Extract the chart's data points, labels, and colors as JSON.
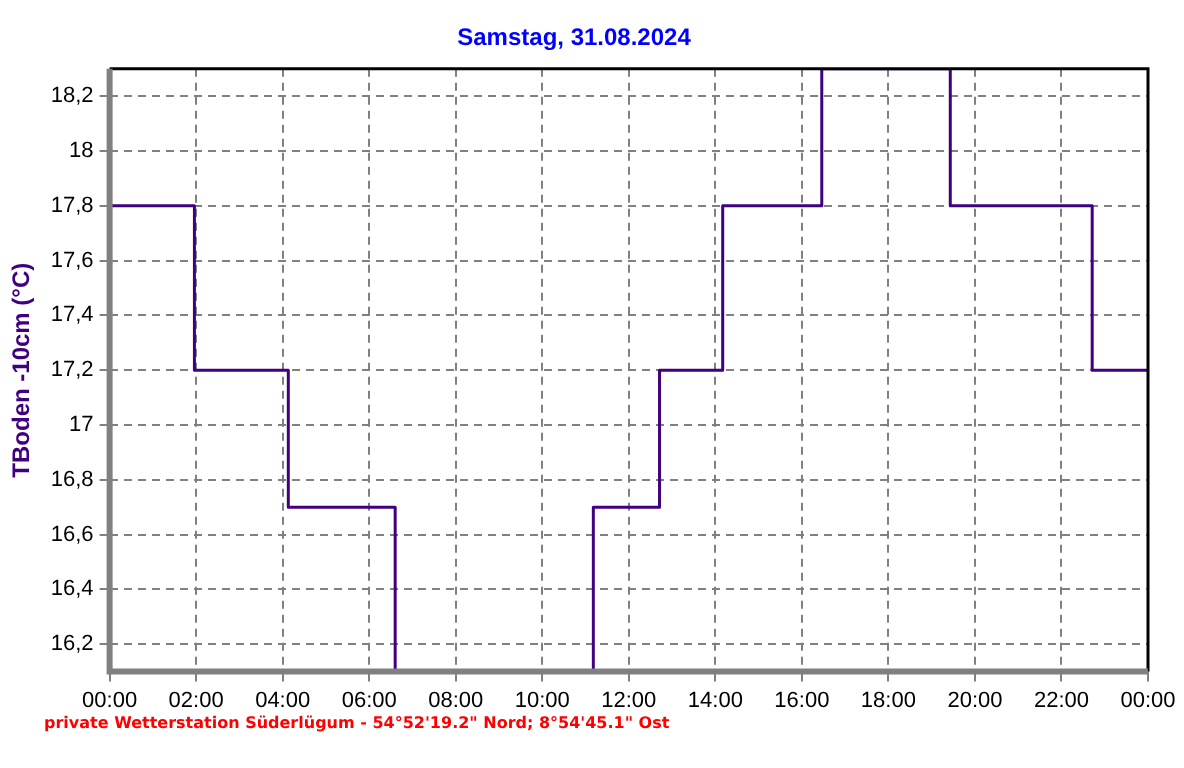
{
  "chart_data": {
    "type": "step",
    "title": "Samstag, 31.08.2024",
    "ylabel": "TBoden -10cm (°C)",
    "x": [
      0,
      1.96,
      4.13,
      6.6,
      11.18,
      12.71,
      14.17,
      16.46,
      19.43,
      22.71,
      24
    ],
    "series": [
      {
        "color": "#400080",
        "values": [
          17.8,
          17.2,
          16.7,
          16.1,
          16.7,
          17.2,
          17.8,
          18.3,
          17.8,
          17.2,
          17.2
        ]
      }
    ],
    "xlim": [
      0,
      24
    ],
    "xticks": [
      {
        "value": 0,
        "label": "00:00"
      },
      {
        "value": 2,
        "label": "02:00"
      },
      {
        "value": 4,
        "label": "04:00"
      },
      {
        "value": 6,
        "label": "06:00"
      },
      {
        "value": 8,
        "label": "08:00"
      },
      {
        "value": 10,
        "label": "10:00"
      },
      {
        "value": 12,
        "label": "12:00"
      },
      {
        "value": 14,
        "label": "14:00"
      },
      {
        "value": 16,
        "label": "16:00"
      },
      {
        "value": 18,
        "label": "18:00"
      },
      {
        "value": 20,
        "label": "20:00"
      },
      {
        "value": 22,
        "label": "22:00"
      },
      {
        "value": 24,
        "label": "00:00"
      }
    ],
    "ylim": [
      16.1,
      18.3
    ],
    "yticks": [
      {
        "value": 16.2,
        "label": "16,2"
      },
      {
        "value": 16.4,
        "label": "16,4"
      },
      {
        "value": 16.6,
        "label": "16,6"
      },
      {
        "value": 16.8,
        "label": "16,8"
      },
      17,
      {
        "value": 17.2,
        "label": "17,2"
      },
      {
        "value": 17.4,
        "label": "17,4"
      },
      {
        "value": 17.6,
        "label": "17,6"
      },
      {
        "value": 17.8,
        "label": "17,8"
      },
      18,
      {
        "value": 18.2,
        "label": "18,2"
      }
    ],
    "grid": true,
    "legend": false,
    "marker": "none",
    "line_style": "solid",
    "annotations": [
      "private Wetterstation Süderlügum - 54°52'19.2\" Nord; 8°54'45.1\" Ost"
    ]
  }
}
